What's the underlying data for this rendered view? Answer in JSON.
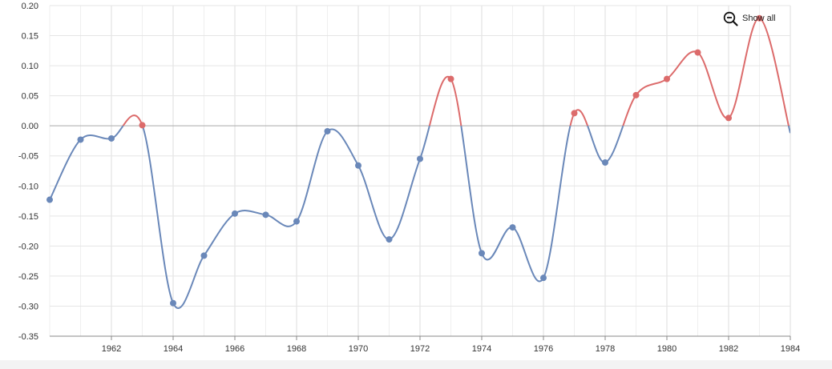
{
  "controls": {
    "show_all_label": "Show all",
    "zoom_icon": "zoom-out-icon"
  },
  "colors": {
    "negative": "#6a88b9",
    "positive": "#dc6b6b",
    "grid": "#e5e5e5",
    "zero_line": "#aaaaaa"
  },
  "chart_data": {
    "type": "line",
    "title": "",
    "xlabel": "",
    "ylabel": "",
    "xlim": [
      1960,
      1984
    ],
    "ylim": [
      -0.35,
      0.2
    ],
    "grid": true,
    "x_ticks": [
      1962,
      1964,
      1966,
      1968,
      1970,
      1972,
      1974,
      1976,
      1978,
      1980,
      1982,
      1984
    ],
    "y_ticks": [
      0.2,
      0.15,
      0.1,
      0.05,
      0.0,
      -0.05,
      -0.1,
      -0.15,
      -0.2,
      -0.25,
      -0.3,
      -0.35
    ],
    "y_tick_labels": [
      "0.20",
      "0.15",
      "0.10",
      "0.05",
      "0.00",
      "-0.05",
      "-0.10",
      "-0.15",
      "-0.20",
      "-0.25",
      "-0.30",
      "-0.35"
    ],
    "series": [
      {
        "x": [
          1960,
          1961,
          1962,
          1963,
          1964,
          1965,
          1966,
          1967,
          1968,
          1969,
          1970,
          1971,
          1972,
          1973,
          1974,
          1975,
          1976,
          1977,
          1978,
          1979,
          1980,
          1981,
          1982,
          1983,
          1984
        ],
        "values": [
          -0.123,
          -0.023,
          -0.021,
          0.001,
          -0.295,
          -0.216,
          -0.146,
          -0.148,
          -0.159,
          -0.009,
          -0.066,
          -0.189,
          -0.055,
          0.078,
          -0.212,
          -0.169,
          -0.253,
          0.021,
          -0.061,
          0.051,
          0.078,
          0.122,
          0.013,
          0.179,
          -0.012
        ]
      }
    ]
  }
}
